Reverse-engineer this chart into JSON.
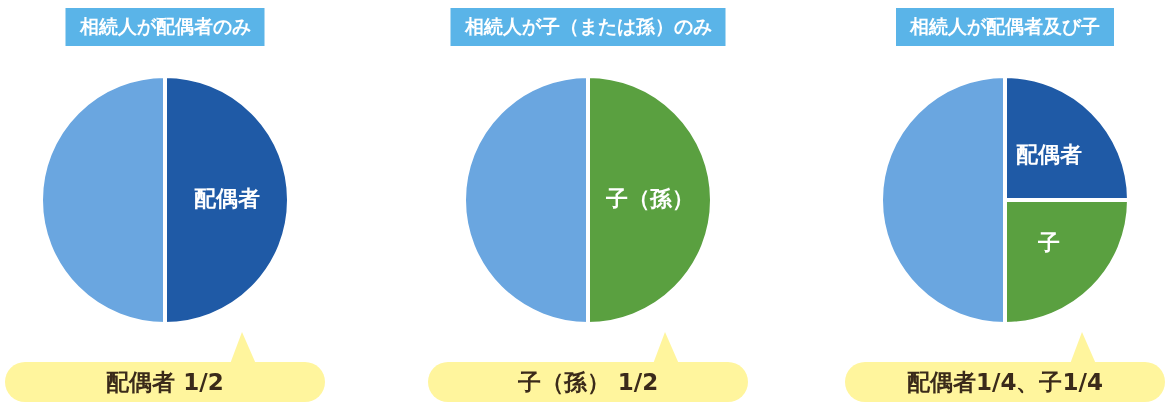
{
  "chart_data": [
    {
      "type": "pie",
      "title": "相続人が配偶者のみ",
      "categories": [
        "配偶者",
        null
      ],
      "values": [
        50,
        50
      ],
      "colors": [
        "#1f5aa6",
        "#6aa6e0"
      ],
      "annotations": [
        "配偶者 1/2"
      ]
    },
    {
      "type": "pie",
      "title": "相続人が子（または孫）のみ",
      "categories": [
        "子（孫）",
        null
      ],
      "values": [
        50,
        50
      ],
      "colors": [
        "#5aa040",
        "#6aa6e0"
      ],
      "annotations": [
        "子（孫） 1/2"
      ]
    },
    {
      "type": "pie",
      "title": "相続人が配偶者及び子",
      "categories": [
        "配偶者",
        "子",
        null
      ],
      "values": [
        25,
        25,
        50
      ],
      "colors": [
        "#1f5aa6",
        "#5aa040",
        "#6aa6e0"
      ],
      "annotations": [
        "配偶者1/4、子1/4"
      ]
    }
  ]
}
